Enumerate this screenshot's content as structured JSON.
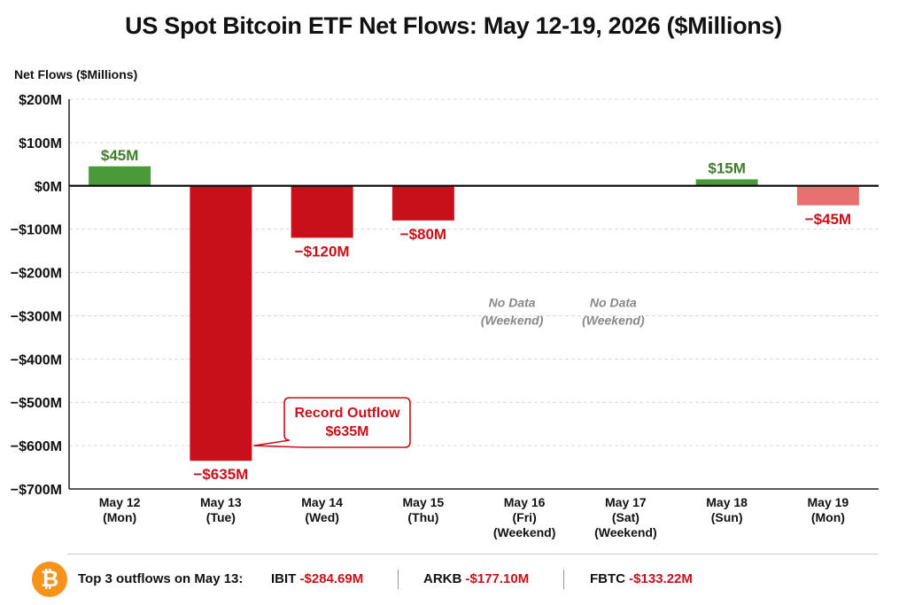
{
  "chart_data": {
    "type": "bar",
    "title": "US Spot Bitcoin ETF Net Flows: May 12-19, 2026 ($Millions)",
    "ylabel": "Net Flows ($Millions)",
    "xlabel": "",
    "ylim": [
      -700,
      200
    ],
    "yticks": [
      200,
      100,
      0,
      -100,
      -200,
      -300,
      -400,
      -500,
      -600,
      -700
    ],
    "ytick_labels": [
      "$200M",
      "$100M",
      "$0M",
      "−$100M",
      "−$200M",
      "−$300M",
      "−$400M",
      "−$500M",
      "−$600M",
      "−$700M"
    ],
    "grid": true,
    "categories": [
      [
        "May 12",
        "(Mon)"
      ],
      [
        "May 13",
        "(Tue)"
      ],
      [
        "May 14",
        "(Wed)"
      ],
      [
        "May 15",
        "(Thu)"
      ],
      [
        "May 16",
        "(Fri)",
        "(Weekend)"
      ],
      [
        "May 17",
        "(Sat)",
        "(Weekend)"
      ],
      [
        "May 18",
        "(Sun)"
      ],
      [
        "May 19",
        "(Mon)"
      ]
    ],
    "values": [
      45,
      -635,
      -120,
      -80,
      null,
      null,
      15,
      -45
    ],
    "value_labels": [
      "$45M",
      "−$635M",
      "−$120M",
      "−$80M",
      "",
      "",
      "$15M",
      "−$45M"
    ],
    "bar_colors": [
      "#4a9a3a",
      "#c8101a",
      "#c8101a",
      "#c8101a",
      "",
      "",
      "#4a9a3a",
      "#e87070"
    ],
    "label_colors": [
      "#3f7f2a",
      "#c8101a",
      "#c8101a",
      "#c8101a",
      "",
      "",
      "#3f7f2a",
      "#c8101a"
    ],
    "no_data_label": [
      "No Data",
      "(Weekend)"
    ],
    "annotation": {
      "lines": [
        "Record Outflow",
        "$635M"
      ],
      "category_index": 1
    }
  },
  "footer": {
    "icon": "bitcoin-icon",
    "icon_glyph": "₿",
    "label": "Top 3 outflows on May 13:",
    "items": [
      {
        "ticker": "IBIT",
        "value": "-$284.69M"
      },
      {
        "ticker": "ARKB",
        "value": "-$177.10M"
      },
      {
        "ticker": "FBTC",
        "value": "-$133.22M"
      }
    ]
  }
}
